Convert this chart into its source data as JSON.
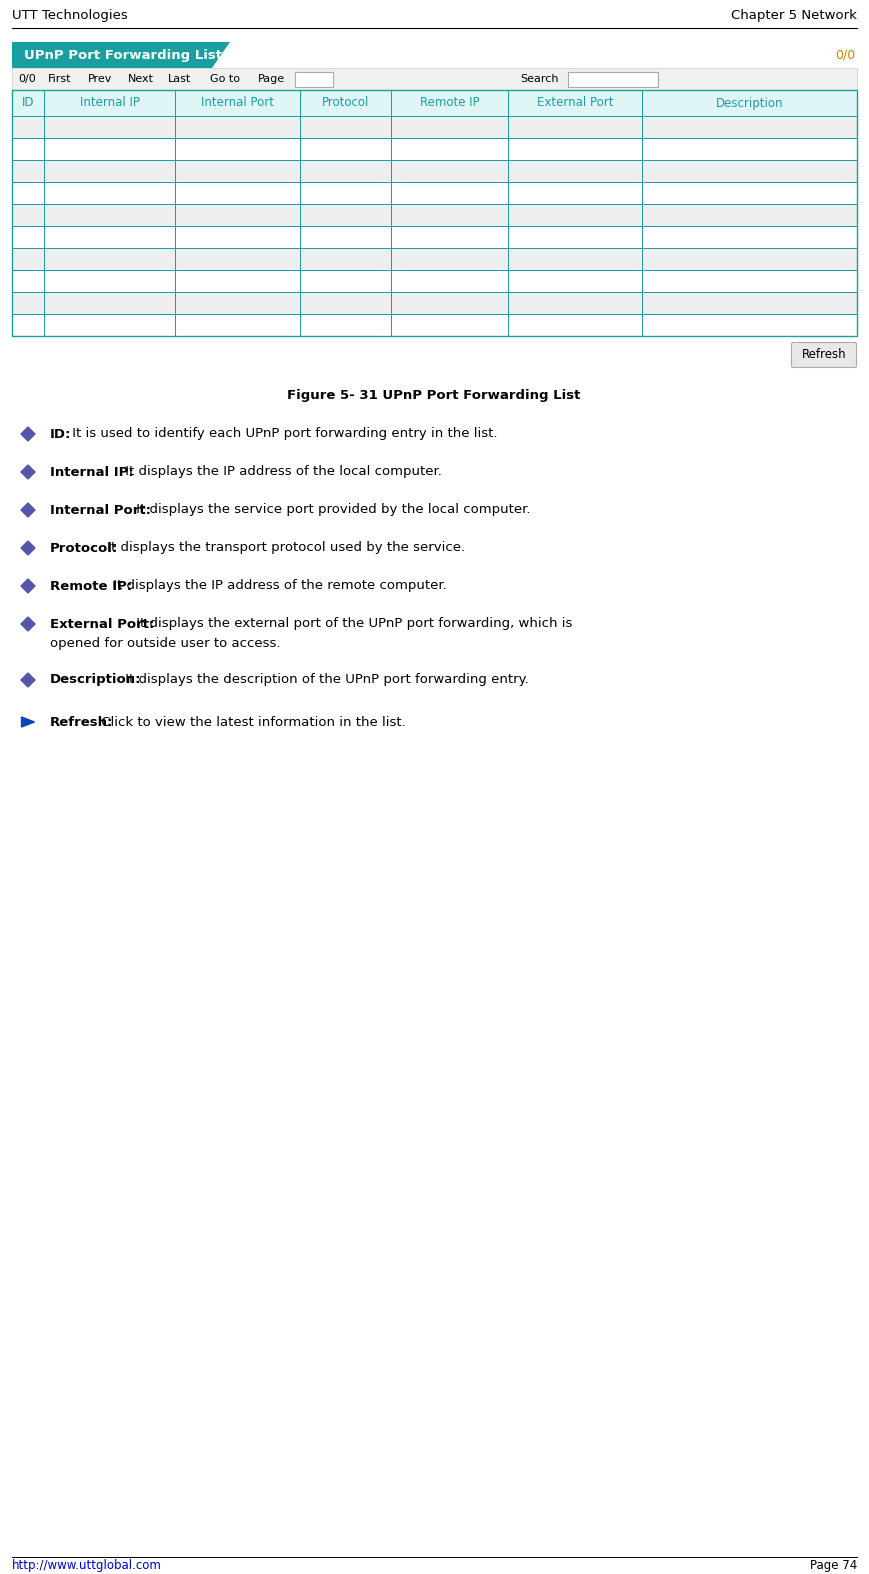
{
  "header_left": "UTT Technologies",
  "header_right": "Chapter 5 Network",
  "table_title": "UPnP Port Forwarding List",
  "table_title_bg": "#1a9fa0",
  "table_title_color": "#ffffff",
  "pagination_text": "0/0",
  "columns": [
    "ID",
    "Internal IP",
    "Internal Port",
    "Protocol",
    "Remote IP",
    "External Port",
    "Description"
  ],
  "col_header_bg": "#e0f5f5",
  "col_header_color": "#1a9fa0",
  "row_bg_odd": "#eeeeee",
  "row_bg_even": "#ffffff",
  "grid_color": "#1a9fa0",
  "num_rows": 10,
  "figure_caption": "Figure 5- 31 UPnP Port Forwarding List",
  "bullet_color": "#5555aa",
  "bullet_items": [
    {
      "bold": "ID:",
      "text": " It is used to identify each UPnP port forwarding entry in the list."
    },
    {
      "bold": "Internal IP:",
      "text": " It displays the IP address of the local computer."
    },
    {
      "bold": "Internal Port:",
      "text": " It displays the service port provided by the local computer."
    },
    {
      "bold": "Protocol:",
      "text": " It displays the transport protocol used by the service."
    },
    {
      "bold": "Remote IP:",
      "text": " It displays the IP address of the remote computer."
    },
    {
      "bold": "External Port:",
      "text": " It displays the external port of the UPnP port forwarding, which is",
      "text2": "opened for outside user to access."
    },
    {
      "bold": "Description:",
      "text": " It displays the description of the UPnP port forwarding entry."
    }
  ],
  "arrow_item": {
    "bold": "Refresh:",
    "text": " Click to view the latest information in the list."
  },
  "footer_left": "http://www.uttglobal.com",
  "footer_right": "Page 74",
  "bg_color": "#ffffff",
  "page_input_box_color": "#ffffff",
  "search_box_color": "#ffffff",
  "nav_bg": "#f0f0f0",
  "refresh_btn_bg": "#e8e8e8",
  "refresh_btn_edge": "#aaaaaa"
}
